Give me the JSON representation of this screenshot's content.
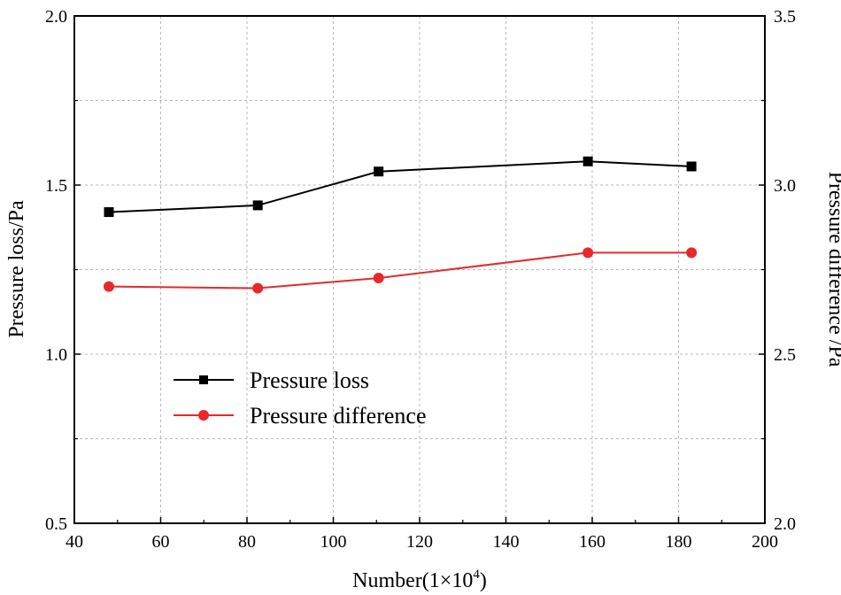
{
  "chart_data": {
    "type": "line",
    "x": [
      48,
      82.5,
      110.5,
      159,
      183
    ],
    "xlim": [
      40,
      200
    ],
    "xticks": [
      "40",
      "60",
      "80",
      "100",
      "120",
      "140",
      "160",
      "180",
      "200"
    ],
    "xlabel": "Number(1×10",
    "xlabel_sup": "4",
    "xlabel_close": ")",
    "ylabel_left": "Pressure loss/Pa",
    "ylim_left": [
      0.5,
      2.0
    ],
    "yticks_left": [
      "0.5",
      "1.0",
      "1.5",
      "2.0"
    ],
    "ylabel_right": "Pressure difference /Pa",
    "ylim_right": [
      2.0,
      3.5
    ],
    "yticks_right": [
      "2.0",
      "2.5",
      "3.0",
      "3.5"
    ],
    "grid": true,
    "legend_position": "center-left",
    "series": [
      {
        "name": "Pressure loss",
        "axis": "left",
        "marker": "square",
        "color": "#000000",
        "values": [
          1.42,
          1.44,
          1.54,
          1.57,
          1.555
        ]
      },
      {
        "name": "Pressure difference",
        "axis": "right",
        "marker": "circle",
        "color": "#e8282b",
        "values": [
          2.7,
          2.695,
          2.725,
          2.8,
          2.8
        ]
      }
    ]
  }
}
